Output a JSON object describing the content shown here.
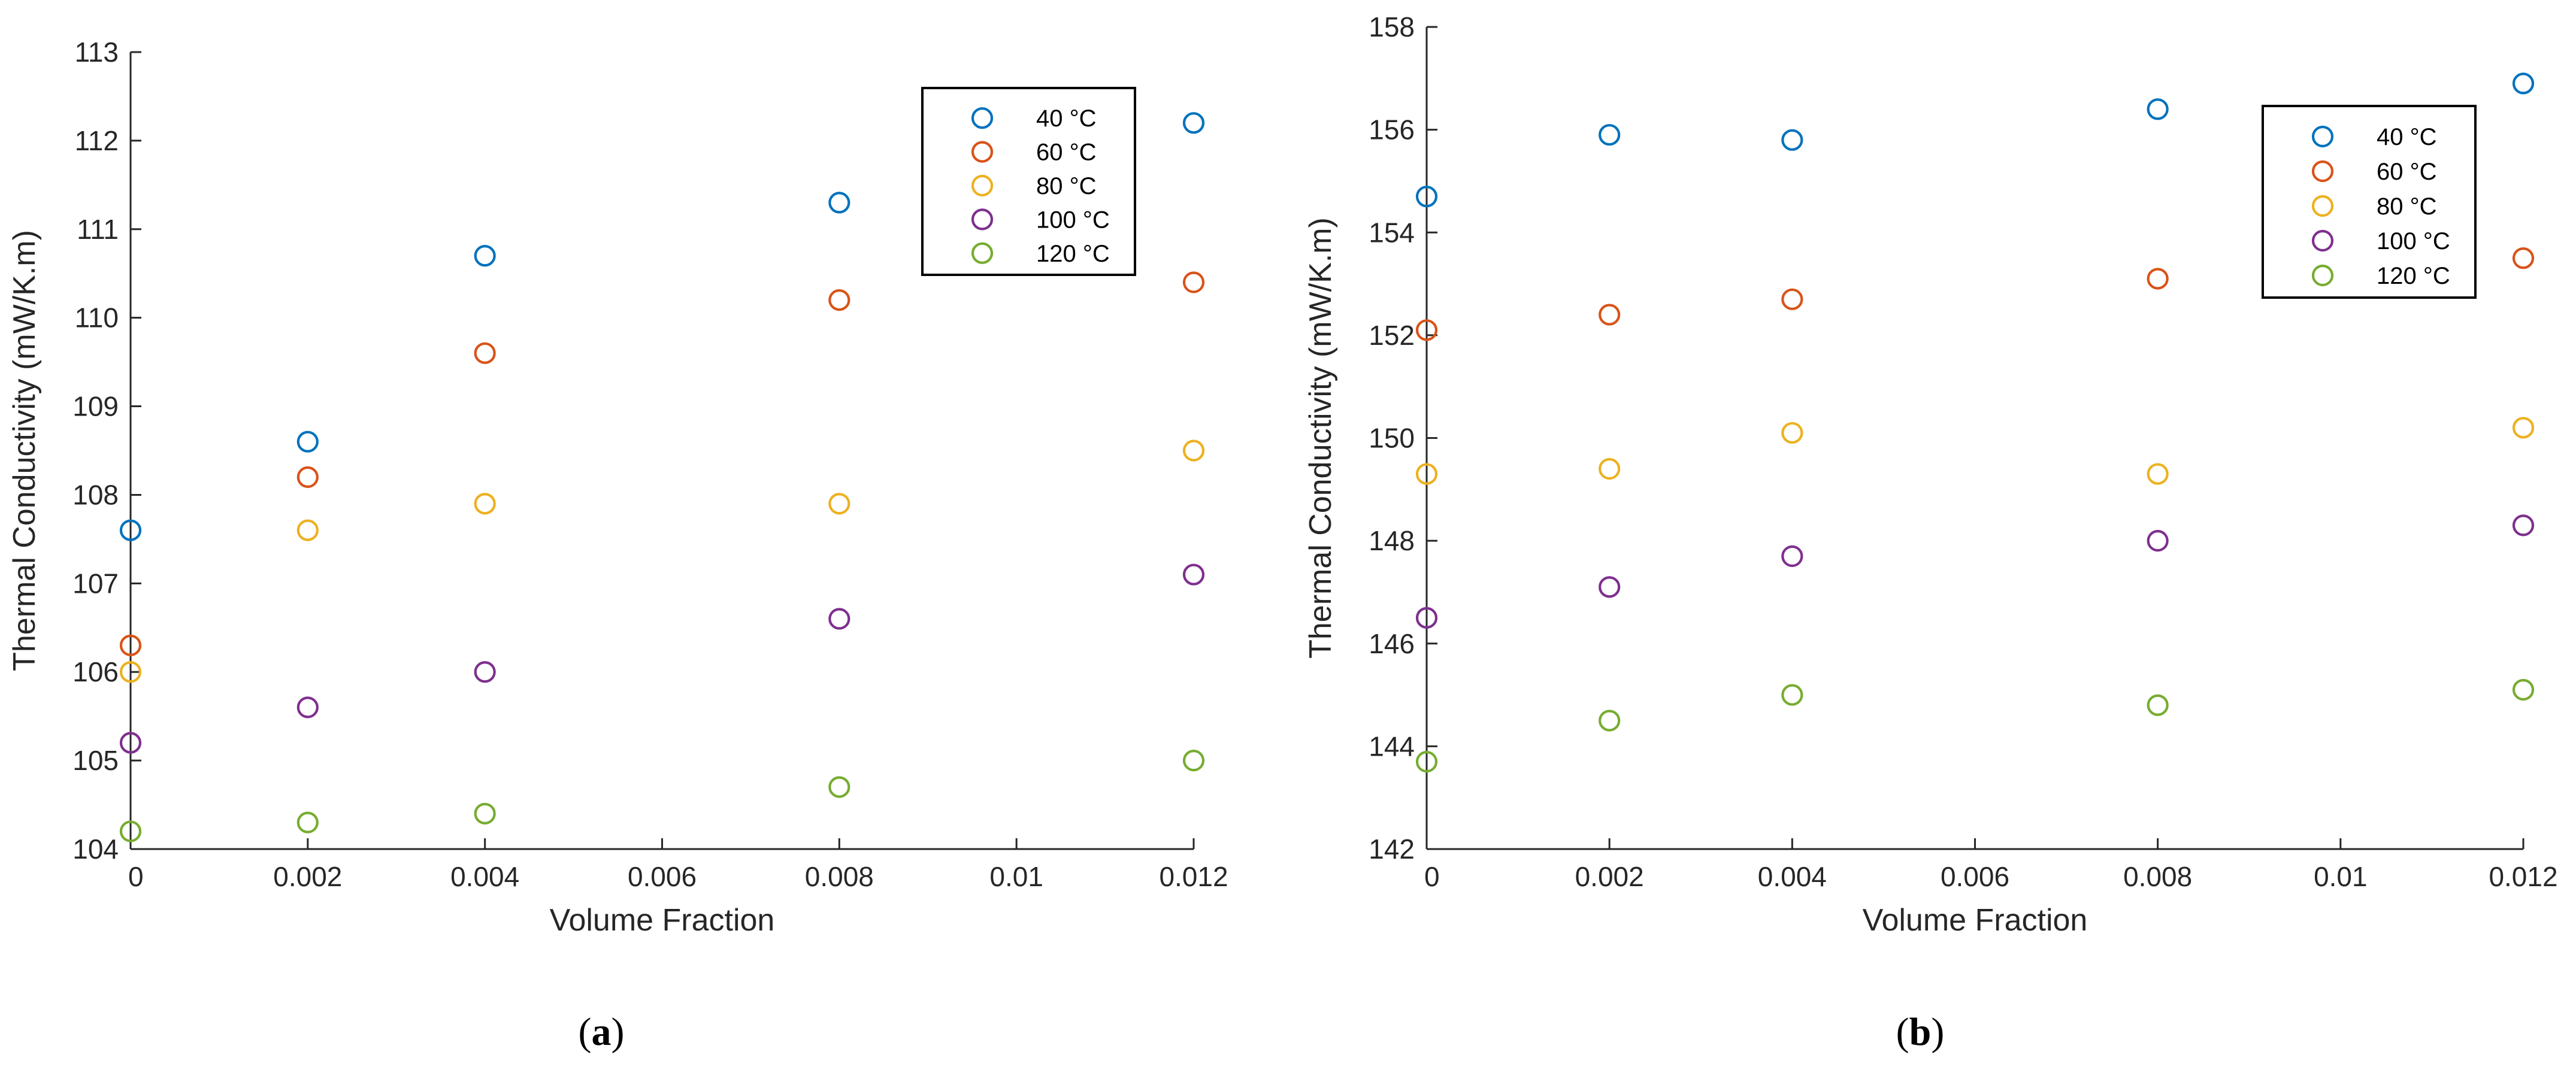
{
  "figure": {
    "panels": [
      "(a)",
      "(b)"
    ]
  },
  "series_colors": [
    "#0072BD",
    "#D95319",
    "#EDB120",
    "#7E2F8E",
    "#77AC30"
  ],
  "chart_data": [
    {
      "type": "scatter",
      "panel_label": "(a)",
      "panel_letter": "a",
      "title": "",
      "xlabel": "Volume Fraction",
      "ylabel": "Thermal Conductivity (mW/K.m)",
      "xlim": [
        0,
        0.012
      ],
      "ylim": [
        104,
        113
      ],
      "xticks": [
        0,
        0.002,
        0.004,
        0.006,
        0.008,
        0.01,
        0.012
      ],
      "xtick_labels": [
        "0",
        "0.002",
        "0.004",
        "0.006",
        "0.008",
        "0.01",
        "0.012"
      ],
      "yticks": [
        104,
        105,
        106,
        107,
        108,
        109,
        110,
        111,
        112,
        113
      ],
      "ytick_labels": [
        "104",
        "105",
        "106",
        "107",
        "108",
        "109",
        "110",
        "111",
        "112",
        "113"
      ],
      "legend_position": "top-right",
      "x": [
        0,
        0.002,
        0.004,
        0.008,
        0.012
      ],
      "series": [
        {
          "name": "40 °C",
          "values": [
            107.6,
            108.6,
            110.7,
            111.3,
            112.2
          ]
        },
        {
          "name": "60 °C",
          "values": [
            106.3,
            108.2,
            109.6,
            110.2,
            110.4
          ]
        },
        {
          "name": "80 °C",
          "values": [
            106.0,
            107.6,
            107.9,
            107.9,
            108.5
          ]
        },
        {
          "name": "100 °C",
          "values": [
            105.2,
            105.6,
            106.0,
            106.6,
            107.1
          ]
        },
        {
          "name": "120 °C",
          "values": [
            104.2,
            104.3,
            104.4,
            104.7,
            105.0
          ]
        }
      ]
    },
    {
      "type": "scatter",
      "panel_label": "(b)",
      "panel_letter": "b",
      "title": "",
      "xlabel": "Volume Fraction",
      "ylabel": "Thermal Conductivity (mW/K.m)",
      "xlim": [
        0,
        0.012
      ],
      "ylim": [
        142,
        158
      ],
      "xticks": [
        0,
        0.002,
        0.004,
        0.006,
        0.008,
        0.01,
        0.012
      ],
      "xtick_labels": [
        "0",
        "0.002",
        "0.004",
        "0.006",
        "0.008",
        "0.01",
        "0.012"
      ],
      "yticks": [
        142,
        144,
        146,
        148,
        150,
        152,
        154,
        156,
        158
      ],
      "ytick_labels": [
        "142",
        "144",
        "146",
        "148",
        "150",
        "152",
        "154",
        "156",
        "158"
      ],
      "legend_position": "top-right",
      "x": [
        0,
        0.002,
        0.004,
        0.008,
        0.012
      ],
      "series": [
        {
          "name": "40 °C",
          "values": [
            154.7,
            155.9,
            155.8,
            156.4,
            156.9
          ]
        },
        {
          "name": "60 °C",
          "values": [
            152.1,
            152.4,
            152.7,
            153.1,
            153.5
          ]
        },
        {
          "name": "80 °C",
          "values": [
            149.3,
            149.4,
            150.1,
            149.3,
            150.2
          ]
        },
        {
          "name": "100 °C",
          "values": [
            146.5,
            147.1,
            147.7,
            148.0,
            148.3
          ]
        },
        {
          "name": "120 °C",
          "values": [
            143.7,
            144.5,
            145.0,
            144.8,
            145.1
          ]
        }
      ]
    }
  ]
}
